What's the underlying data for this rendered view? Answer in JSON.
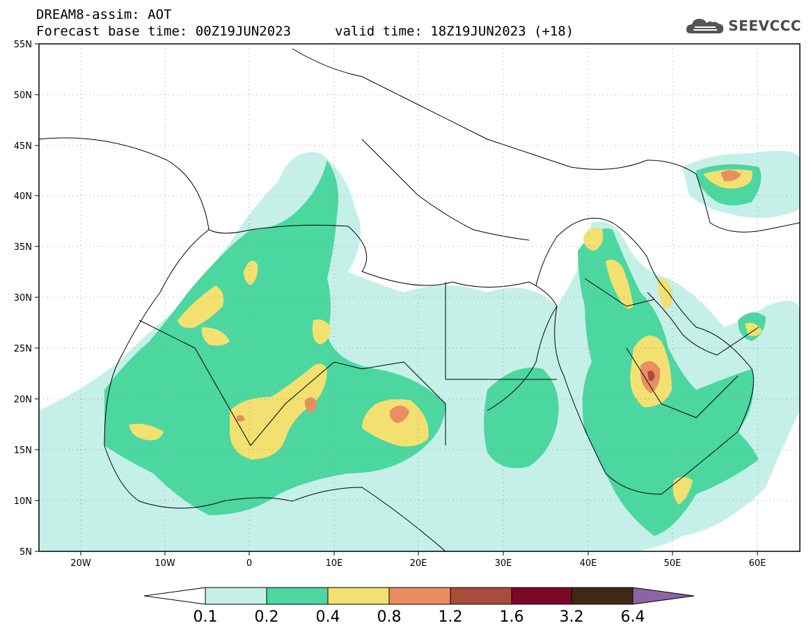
{
  "header": {
    "title": "DREAM8-assim: AOT",
    "base_time": "Forecast base time: 00Z19JUN2023",
    "valid_time": "valid time: 18Z19JUN2023 (+18)",
    "logo_text": "SEEVCCC"
  },
  "axes": {
    "lat_labels": [
      "55N",
      "50N",
      "45N",
      "40N",
      "35N",
      "30N",
      "25N",
      "20N",
      "15N",
      "10N",
      "5N"
    ],
    "lon_labels": [
      "20W",
      "10W",
      "0",
      "10E",
      "20E",
      "30E",
      "40E",
      "50E",
      "60E"
    ],
    "lat_range": [
      5,
      55
    ],
    "lon_range": [
      -25,
      65
    ]
  },
  "colorbar": {
    "levels": [
      "0.1",
      "0.2",
      "0.4",
      "0.8",
      "1.2",
      "1.6",
      "3.2",
      "6.4"
    ],
    "colors": [
      "#ffffff",
      "#c4f0e8",
      "#4cd6a0",
      "#f2e070",
      "#e88e60",
      "#a84c3c",
      "#7c0828",
      "#402814",
      "#8c64a4"
    ]
  },
  "colors": {
    "c1": "#c4f0e8",
    "c2": "#4cd6a0",
    "c3": "#f2e070",
    "c4": "#e88e60",
    "c5": "#a84c3c"
  }
}
